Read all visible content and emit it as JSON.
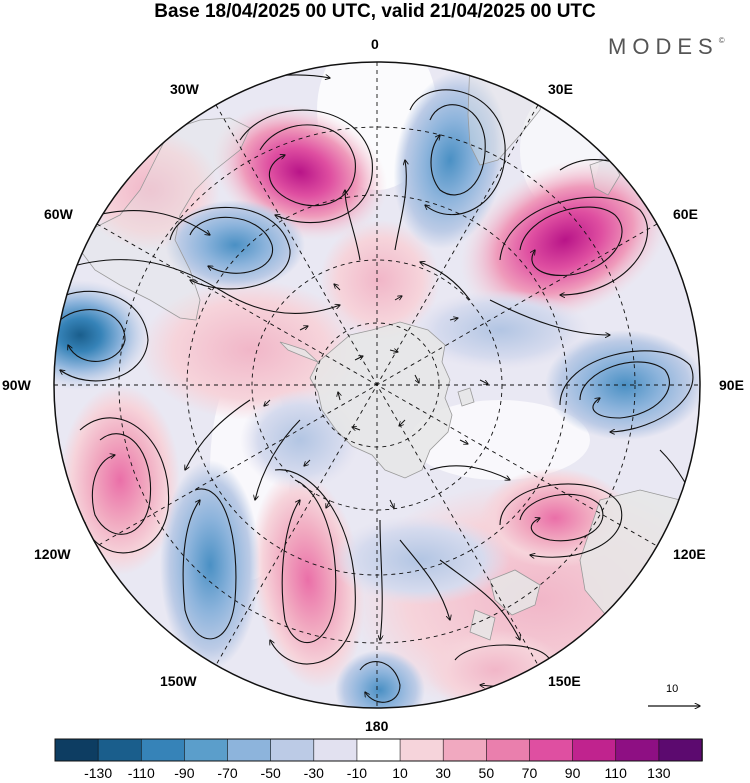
{
  "title": "Base 18/04/2025 00 UTC, valid 21/04/2025 00 UTC",
  "brand": "MODES",
  "brand_mark": "©",
  "longitude_labels": {
    "lon_0": "0",
    "lon_30e": "30E",
    "lon_60e": "60E",
    "lon_90e": "90E",
    "lon_120e": "120E",
    "lon_150e": "150E",
    "lon_180": "180",
    "lon_150w": "150W",
    "lon_120w": "120W",
    "lon_90w": "90W",
    "lon_60w": "60W",
    "lon_30w": "30W"
  },
  "reference_vector": "10",
  "colorbar": {
    "labels": [
      "-130",
      "-110",
      "-90",
      "-70",
      "-50",
      "-30",
      "-10",
      "10",
      "30",
      "50",
      "70",
      "90",
      "110",
      "130"
    ],
    "colors": [
      "#0d3d62",
      "#1a5e8c",
      "#3683b8",
      "#5b9ecb",
      "#8db4dc",
      "#bccbe6",
      "#e2e1f0",
      "#ffffff",
      "#f6d4db",
      "#f1a9c0",
      "#ea7fad",
      "#df4fa1",
      "#c0238e",
      "#8e0f83",
      "#5c0a6f"
    ]
  },
  "colors": {
    "map_land": "#e6e6e6",
    "coast": "#999999",
    "graticule": "#111111",
    "streamline": "#111111"
  }
}
